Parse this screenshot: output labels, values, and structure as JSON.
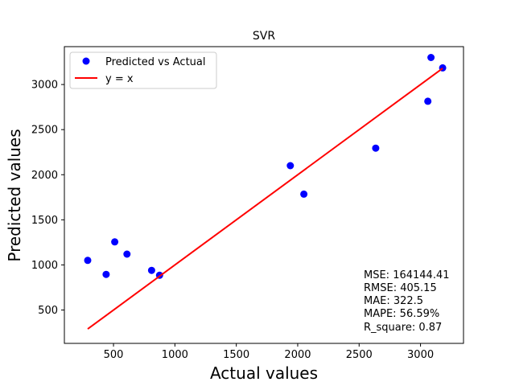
{
  "chart_data": {
    "type": "scatter",
    "title": "SVR",
    "xlabel": "Actual values",
    "ylabel": "Predicted values",
    "xlim": [
      100,
      3350
    ],
    "ylim": [
      130,
      3420
    ],
    "x_ticks": [
      500,
      1000,
      1500,
      2000,
      2500,
      3000
    ],
    "y_ticks": [
      500,
      1000,
      1500,
      2000,
      2500,
      3000
    ],
    "grid": false,
    "legend_position": "top-left",
    "series": [
      {
        "name": "Predicted vs Actual",
        "kind": "scatter",
        "color": "#0000ff",
        "points": [
          [
            290,
            1050
          ],
          [
            440,
            895
          ],
          [
            510,
            1255
          ],
          [
            610,
            1120
          ],
          [
            810,
            940
          ],
          [
            875,
            885
          ],
          [
            1940,
            2100
          ],
          [
            2050,
            1785
          ],
          [
            2635,
            2295
          ],
          [
            3060,
            2815
          ],
          [
            3085,
            3300
          ],
          [
            3180,
            3185
          ]
        ]
      },
      {
        "name": "y = x",
        "kind": "line",
        "color": "#ff0000",
        "points": [
          [
            290,
            290
          ],
          [
            3180,
            3180
          ]
        ]
      }
    ],
    "annotations": [
      "MSE: 164144.41",
      "RMSE: 405.15",
      "MAE: 322.5",
      "MAPE: 56.59%",
      "R_square: 0.87"
    ]
  }
}
